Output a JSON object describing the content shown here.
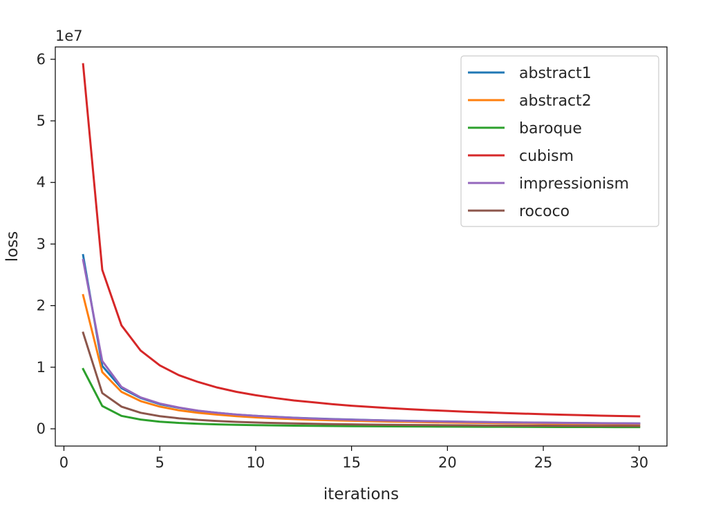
{
  "chart_data": {
    "type": "line",
    "title": "",
    "xlabel": "iterations",
    "ylabel": "loss",
    "y_offset_label": "1e7",
    "xlim": [
      -0.45,
      31.45
    ],
    "ylim": [
      -0.28,
      6.2
    ],
    "y_scale_factor": 10000000,
    "x_ticks": [
      0,
      5,
      10,
      15,
      20,
      25,
      30
    ],
    "y_ticks": [
      0,
      1,
      2,
      3,
      4,
      5,
      6
    ],
    "grid": false,
    "legend_position": "top-right",
    "x": [
      1,
      2,
      3,
      4,
      5,
      6,
      7,
      8,
      9,
      10,
      11,
      12,
      13,
      14,
      15,
      16,
      17,
      18,
      19,
      20,
      21,
      22,
      23,
      24,
      25,
      26,
      27,
      28,
      29,
      30
    ],
    "series": [
      {
        "name": "abstract1",
        "color": "#1f77b4",
        "values": [
          2.82,
          1.02,
          0.66,
          0.5,
          0.4,
          0.34,
          0.29,
          0.26,
          0.23,
          0.21,
          0.195,
          0.18,
          0.168,
          0.158,
          0.15,
          0.142,
          0.135,
          0.129,
          0.124,
          0.119,
          0.114,
          0.11,
          0.106,
          0.103,
          0.1,
          0.097,
          0.094,
          0.092,
          0.09,
          0.088
        ]
      },
      {
        "name": "abstract2",
        "color": "#ff7f0e",
        "values": [
          2.17,
          0.92,
          0.6,
          0.45,
          0.36,
          0.3,
          0.26,
          0.23,
          0.205,
          0.185,
          0.17,
          0.157,
          0.146,
          0.137,
          0.13,
          0.123,
          0.117,
          0.112,
          0.107,
          0.103,
          0.099,
          0.095,
          0.092,
          0.089,
          0.086,
          0.084,
          0.082,
          0.08,
          0.078,
          0.076
        ]
      },
      {
        "name": "baroque",
        "color": "#2ca02c",
        "values": [
          0.97,
          0.37,
          0.21,
          0.15,
          0.115,
          0.095,
          0.082,
          0.072,
          0.065,
          0.059,
          0.055,
          0.051,
          0.048,
          0.045,
          0.043,
          0.041,
          0.039,
          0.038,
          0.036,
          0.035,
          0.034,
          0.033,
          0.032,
          0.031,
          0.03,
          0.029,
          0.029,
          0.028,
          0.027,
          0.027
        ]
      },
      {
        "name": "cubism",
        "color": "#d62728",
        "values": [
          5.92,
          2.58,
          1.68,
          1.27,
          1.03,
          0.87,
          0.76,
          0.67,
          0.6,
          0.545,
          0.5,
          0.46,
          0.43,
          0.4,
          0.375,
          0.355,
          0.335,
          0.318,
          0.303,
          0.29,
          0.277,
          0.266,
          0.256,
          0.246,
          0.237,
          0.229,
          0.221,
          0.214,
          0.208,
          0.202
        ]
      },
      {
        "name": "impressionism",
        "color": "#9467bd",
        "values": [
          2.74,
          1.1,
          0.68,
          0.51,
          0.41,
          0.345,
          0.295,
          0.26,
          0.232,
          0.21,
          0.193,
          0.178,
          0.166,
          0.156,
          0.147,
          0.14,
          0.133,
          0.127,
          0.122,
          0.117,
          0.112,
          0.108,
          0.104,
          0.101,
          0.098,
          0.095,
          0.093,
          0.09,
          0.088,
          0.086
        ]
      },
      {
        "name": "rococo",
        "color": "#8c564b",
        "values": [
          1.56,
          0.58,
          0.36,
          0.26,
          0.205,
          0.17,
          0.145,
          0.127,
          0.113,
          0.102,
          0.094,
          0.087,
          0.081,
          0.076,
          0.072,
          0.068,
          0.065,
          0.062,
          0.06,
          0.058,
          0.056,
          0.054,
          0.052,
          0.051,
          0.05,
          0.049,
          0.048,
          0.047,
          0.046,
          0.045
        ]
      }
    ]
  }
}
